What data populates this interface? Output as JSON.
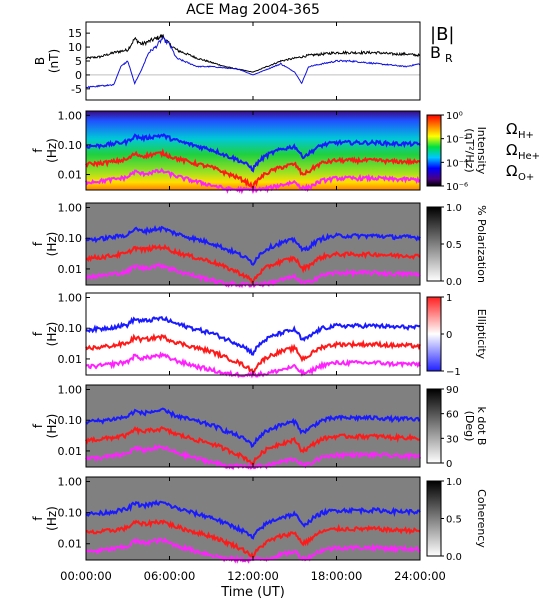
{
  "title": "ACE Mag 2004-365",
  "colors": {
    "B_total": "#000000",
    "B_R": "#1010e0",
    "O_H": "#1a1aff",
    "O_He": "#ff1a1a",
    "O_O": "#ff22ff"
  },
  "chart_data": {
    "type": "line",
    "title": "ACE Mag 2004-365",
    "xlabel": "Time (UT)",
    "x_ticks": [
      "00:00:00",
      "06:00:00",
      "12:00:00",
      "18:00:00",
      "24:00:00"
    ],
    "xlim": [
      0,
      24
    ],
    "panels": [
      {
        "type": "line",
        "ylabel": "B (nT)",
        "ylim": [
          -9,
          19
        ],
        "y_ticks": [
          "15",
          "10",
          "5",
          "0",
          "-5"
        ],
        "legend": [
          "|B|",
          "B_R"
        ],
        "series": [
          {
            "name": "|B|",
            "color": "#000000",
            "x": [
              0,
              1,
              2,
              3,
              3.5,
              4,
              4.5,
              5,
              5.5,
              6,
              6.5,
              7,
              8,
              9,
              10,
              11,
              12,
              13,
              14,
              15,
              16,
              17,
              18,
              19,
              20,
              21,
              22,
              23,
              24
            ],
            "y": [
              6,
              6.5,
              8,
              9,
              13,
              11,
              12,
              13,
              14,
              11,
              9,
              8,
              6,
              4.5,
              3,
              2,
              1,
              3,
              5,
              6,
              7,
              7.5,
              8,
              8,
              8,
              8,
              7.5,
              7.5,
              7
            ]
          },
          {
            "name": "B_R",
            "color": "#1010e0",
            "x": [
              0,
              1,
              2,
              2.5,
              3,
              3.5,
              4,
              4.5,
              5,
              5.5,
              6,
              6.5,
              7,
              8,
              9,
              10,
              11,
              12,
              13,
              14,
              15,
              15.5,
              16,
              17,
              18,
              19,
              20,
              21,
              22,
              23,
              24
            ],
            "y": [
              -4.5,
              -4,
              -3.5,
              3,
              5,
              -3,
              2,
              8,
              10,
              13,
              11,
              6,
              5,
              3,
              3,
              2.5,
              2,
              0,
              2,
              4,
              1,
              -3,
              3,
              4,
              5,
              5,
              4.5,
              4,
              3.5,
              3,
              4
            ]
          }
        ]
      },
      {
        "type": "heatmap",
        "ylabel": "f (Hz)",
        "y_scale": "log",
        "ylim": [
          0.003,
          1.4
        ],
        "y_ticks": [
          "1.00",
          "0.10",
          "0.01"
        ],
        "colorbar": {
          "label": "Intensity (nT²/Hz)",
          "ticks": [
            "10⁰",
            "10⁻²",
            "10⁻⁴",
            "10⁻⁶"
          ]
        }
      },
      {
        "type": "heatmap",
        "ylabel": "f (Hz)",
        "y_scale": "log",
        "ylim": [
          0.003,
          1.4
        ],
        "y_ticks": [
          "1.00",
          "0.10",
          "0.01"
        ],
        "colorbar": {
          "label": "% Polarization",
          "ticks": [
            "1.0",
            "0.5",
            "0.0"
          ]
        }
      },
      {
        "type": "heatmap",
        "ylabel": "f (Hz)",
        "y_scale": "log",
        "ylim": [
          0.003,
          1.4
        ],
        "y_ticks": [
          "1.00",
          "0.10",
          "0.01"
        ],
        "colorbar": {
          "label": "Ellipticity",
          "ticks": [
            "1",
            "0",
            "−1"
          ]
        }
      },
      {
        "type": "heatmap",
        "ylabel": "f (Hz)",
        "y_scale": "log",
        "ylim": [
          0.003,
          1.4
        ],
        "y_ticks": [
          "1.00",
          "0.10",
          "0.01"
        ],
        "colorbar": {
          "label": "k dot B (Deg)",
          "ticks": [
            "90",
            "60",
            "30",
            "0"
          ]
        }
      },
      {
        "type": "heatmap",
        "ylabel": "f (Hz)",
        "y_scale": "log",
        "ylim": [
          0.003,
          1.4
        ],
        "y_ticks": [
          "1.00",
          "0.10",
          "0.01"
        ],
        "colorbar": {
          "label": "Coherency",
          "ticks": [
            "1.0",
            "0.5",
            "0.0"
          ]
        }
      }
    ],
    "overlay_legend": [
      "ΩH+",
      "ΩHe+",
      "ΩO+"
    ],
    "overlay_lines": {
      "x": [
        0,
        1,
        2,
        3,
        3.5,
        4,
        4.5,
        5,
        5.5,
        6,
        6.5,
        7,
        8,
        9,
        10,
        11,
        12,
        13,
        14,
        15,
        15.5,
        16,
        17,
        18,
        19,
        20,
        21,
        22,
        23,
        24
      ],
      "H_plus": [
        0.09,
        0.095,
        0.11,
        0.13,
        0.2,
        0.17,
        0.18,
        0.2,
        0.21,
        0.17,
        0.14,
        0.12,
        0.09,
        0.07,
        0.045,
        0.03,
        0.015,
        0.045,
        0.07,
        0.09,
        0.04,
        0.05,
        0.1,
        0.12,
        0.12,
        0.12,
        0.12,
        0.11,
        0.11,
        0.105
      ],
      "He_plus": [
        0.0225,
        0.024,
        0.0275,
        0.0325,
        0.05,
        0.0425,
        0.045,
        0.05,
        0.0525,
        0.0425,
        0.035,
        0.03,
        0.0225,
        0.0175,
        0.0113,
        0.0075,
        0.0038,
        0.0113,
        0.0175,
        0.0225,
        0.01,
        0.0125,
        0.025,
        0.03,
        0.03,
        0.03,
        0.03,
        0.0275,
        0.0275,
        0.026
      ],
      "O_plus": [
        0.0056,
        0.006,
        0.0069,
        0.0081,
        0.0125,
        0.0106,
        0.0113,
        0.0125,
        0.0131,
        0.0106,
        0.0088,
        0.0075,
        0.0056,
        0.0044,
        0.0033,
        0.0031,
        0.0031,
        0.0033,
        0.0044,
        0.0056,
        0.0035,
        0.0036,
        0.0063,
        0.0075,
        0.0075,
        0.0075,
        0.0075,
        0.0069,
        0.0069,
        0.0066
      ]
    }
  }
}
